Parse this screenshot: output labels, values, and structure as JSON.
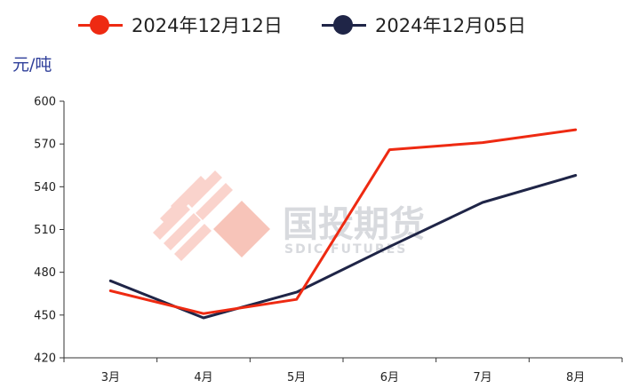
{
  "chart_data": {
    "type": "line",
    "unit_label": "元/吨",
    "categories": [
      "3月",
      "4月",
      "5月",
      "6月",
      "7月",
      "8月"
    ],
    "ylim": [
      420,
      600
    ],
    "yticks": [
      420,
      450,
      480,
      510,
      540,
      570,
      600
    ],
    "legend_position": "top-center",
    "grid": false,
    "series": [
      {
        "name": "2024年12月12日",
        "color": "#ee2a12",
        "values": [
          467,
          451,
          461,
          566,
          571,
          580
        ]
      },
      {
        "name": "2024年12月05日",
        "color": "#1f2547",
        "values": [
          474,
          448,
          466,
          498,
          529,
          548
        ]
      }
    ]
  },
  "watermark": {
    "text": "国投期货",
    "subtext": "SDIC FUTURES"
  }
}
